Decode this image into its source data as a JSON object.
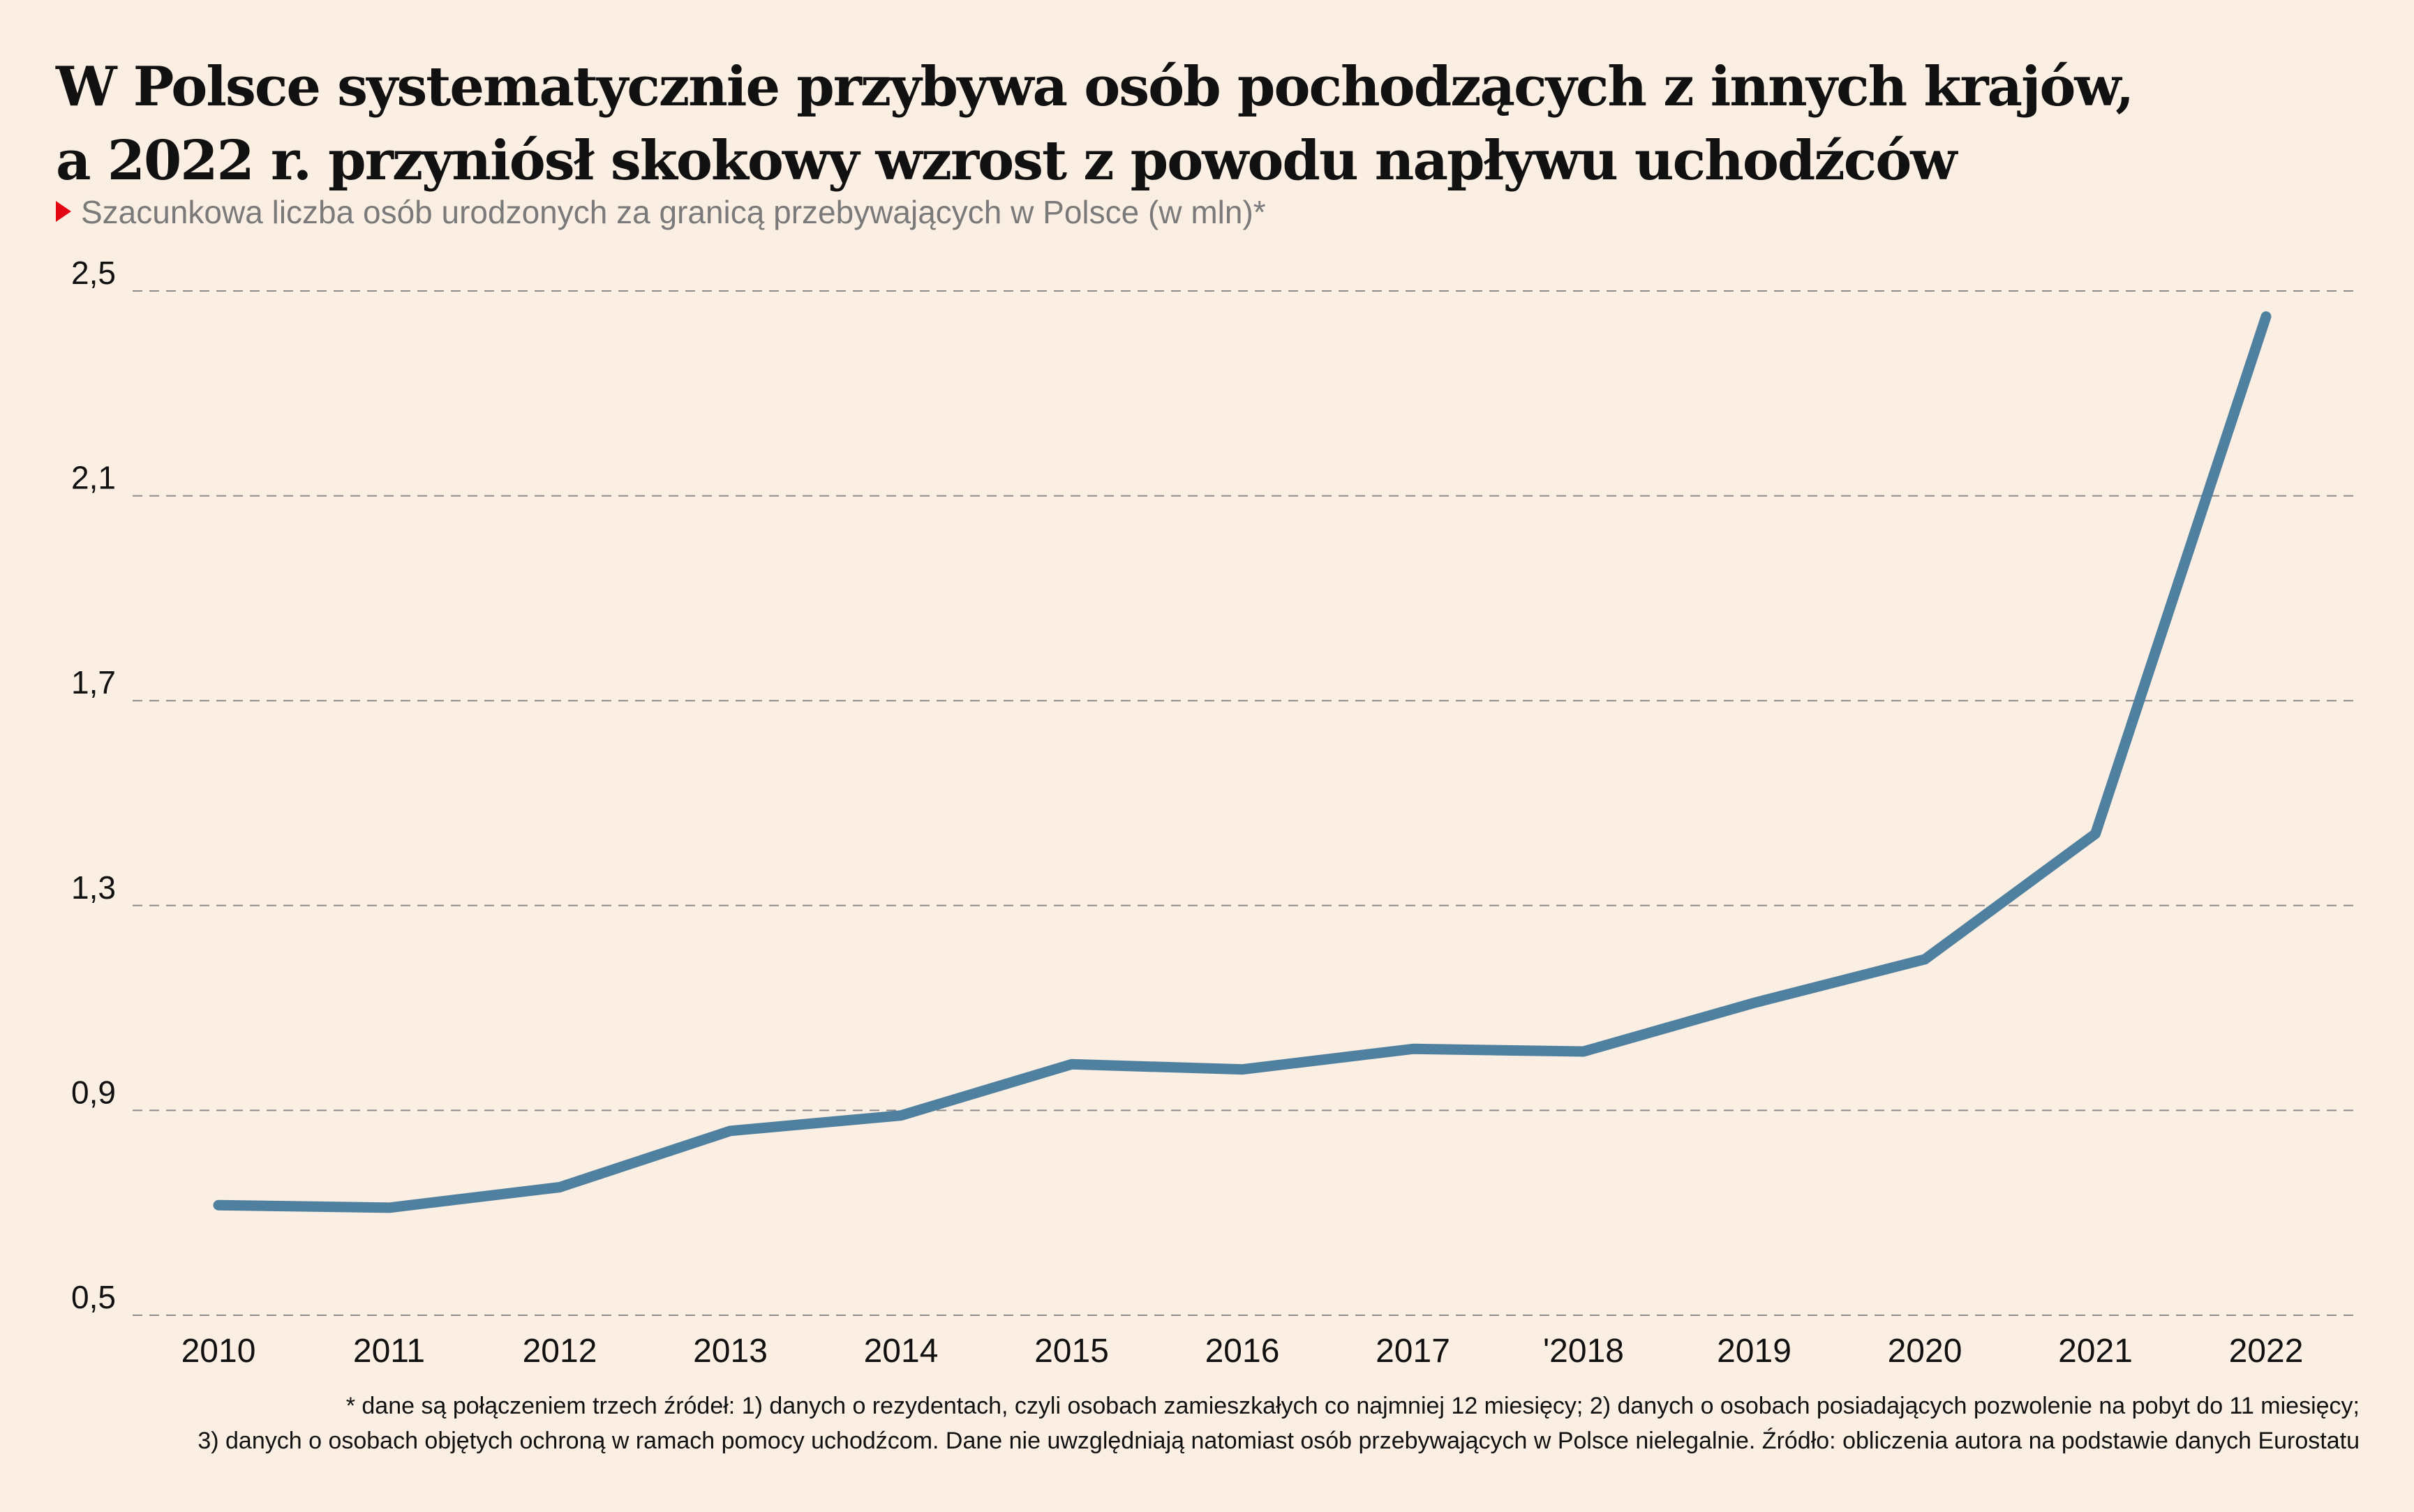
{
  "title_lines": [
    "W Polsce systematycznie przybywa osób pochodzących z innych krajów,",
    "a 2022 r. przyniósł skokowy wzrost z powodu napływu uchodźców"
  ],
  "subtitle": "Szacunkowa liczba osób urodzonych za granicą przebywających w Polsce (w mln)*",
  "footnote_lines": [
    "* dane są połączeniem trzech źródeł: 1) danych o rezydentach, czyli osobach zamieszkałych co najmniej 12 miesięcy; 2) danych o osobach posiadających pozwolenie na pobyt do 11 miesięcy;",
    "3) danych o osobach objętych ochroną w ramach pomocy uchodźcom. Dane nie uwzględniają natomiast osób przebywających w Polsce nielegalnie. Źródło: obliczenia autora na podstawie danych Eurostatu"
  ],
  "colors": {
    "background": "#fbeee2",
    "line": "#50809f",
    "grid": "#8c8c8c",
    "marker": "#e30613",
    "text": "#111111",
    "subtitle": "#7a7a7a"
  },
  "chart_data": {
    "type": "line",
    "title": "W Polsce systematycznie przybywa osób pochodzących z innych krajów, a 2022 r. przyniósł skokowy wzrost z powodu napływu uchodźców",
    "subtitle": "Szacunkowa liczba osób urodzonych za granicą przebywających w Polsce (w mln)*",
    "xlabel": "",
    "ylabel": "",
    "categories": [
      "2010",
      "2011",
      "2012",
      "2013",
      "2014",
      "2015",
      "2016",
      "2017",
      "'2018",
      "2019",
      "2020",
      "2021",
      "2022"
    ],
    "series": [
      {
        "values": [
          0.715,
          0.71,
          0.75,
          0.86,
          0.89,
          0.99,
          0.98,
          1.02,
          1.015,
          1.11,
          1.195,
          1.44,
          2.45
        ]
      }
    ],
    "ylim": [
      0.5,
      2.5
    ],
    "yticks": [
      0.5,
      0.9,
      1.3,
      1.7,
      2.1,
      2.5
    ],
    "ytick_labels": [
      "0,5",
      "0,9",
      "1,3",
      "1,7",
      "2,1",
      "2,5"
    ],
    "grid": "horizontal dashed",
    "legend": "none"
  }
}
